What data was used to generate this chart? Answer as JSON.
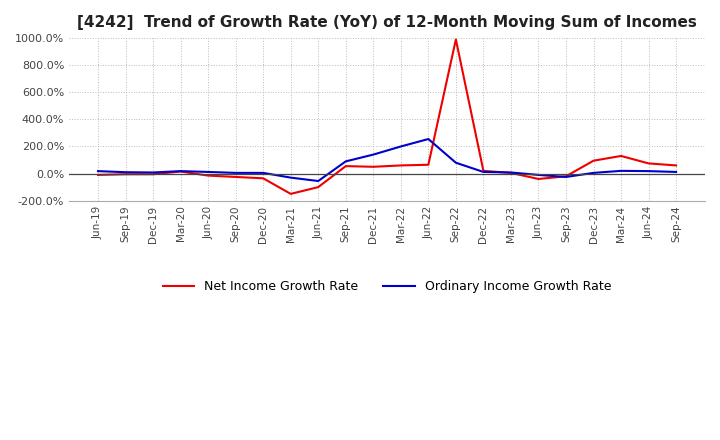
{
  "title": "[4242]  Trend of Growth Rate (YoY) of 12-Month Moving Sum of Incomes",
  "ylim": [
    -200,
    1000
  ],
  "yticks": [
    -200,
    0,
    200,
    400,
    600,
    800,
    1000
  ],
  "background_color": "#ffffff",
  "grid_color": "#bbbbbb",
  "ordinary_color": "#0000cc",
  "net_color": "#ee0000",
  "legend_ordinary": "Ordinary Income Growth Rate",
  "legend_net": "Net Income Growth Rate",
  "x_labels": [
    "Jun-19",
    "Sep-19",
    "Dec-19",
    "Mar-20",
    "Jun-20",
    "Sep-20",
    "Dec-20",
    "Mar-21",
    "Jun-21",
    "Sep-21",
    "Dec-21",
    "Mar-22",
    "Jun-22",
    "Sep-22",
    "Dec-22",
    "Mar-23",
    "Jun-23",
    "Sep-23",
    "Dec-23",
    "Mar-24",
    "Jun-24",
    "Sep-24"
  ],
  "ordinary_y": [
    18,
    10,
    8,
    18,
    12,
    5,
    5,
    -30,
    -55,
    90,
    140,
    200,
    255,
    80,
    12,
    8,
    -10,
    -25,
    5,
    20,
    18,
    12
  ],
  "net_y": [
    -10,
    -5,
    -5,
    15,
    -15,
    -25,
    -35,
    -150,
    -100,
    55,
    50,
    60,
    65,
    990,
    20,
    5,
    -40,
    -20,
    95,
    130,
    75,
    60
  ]
}
